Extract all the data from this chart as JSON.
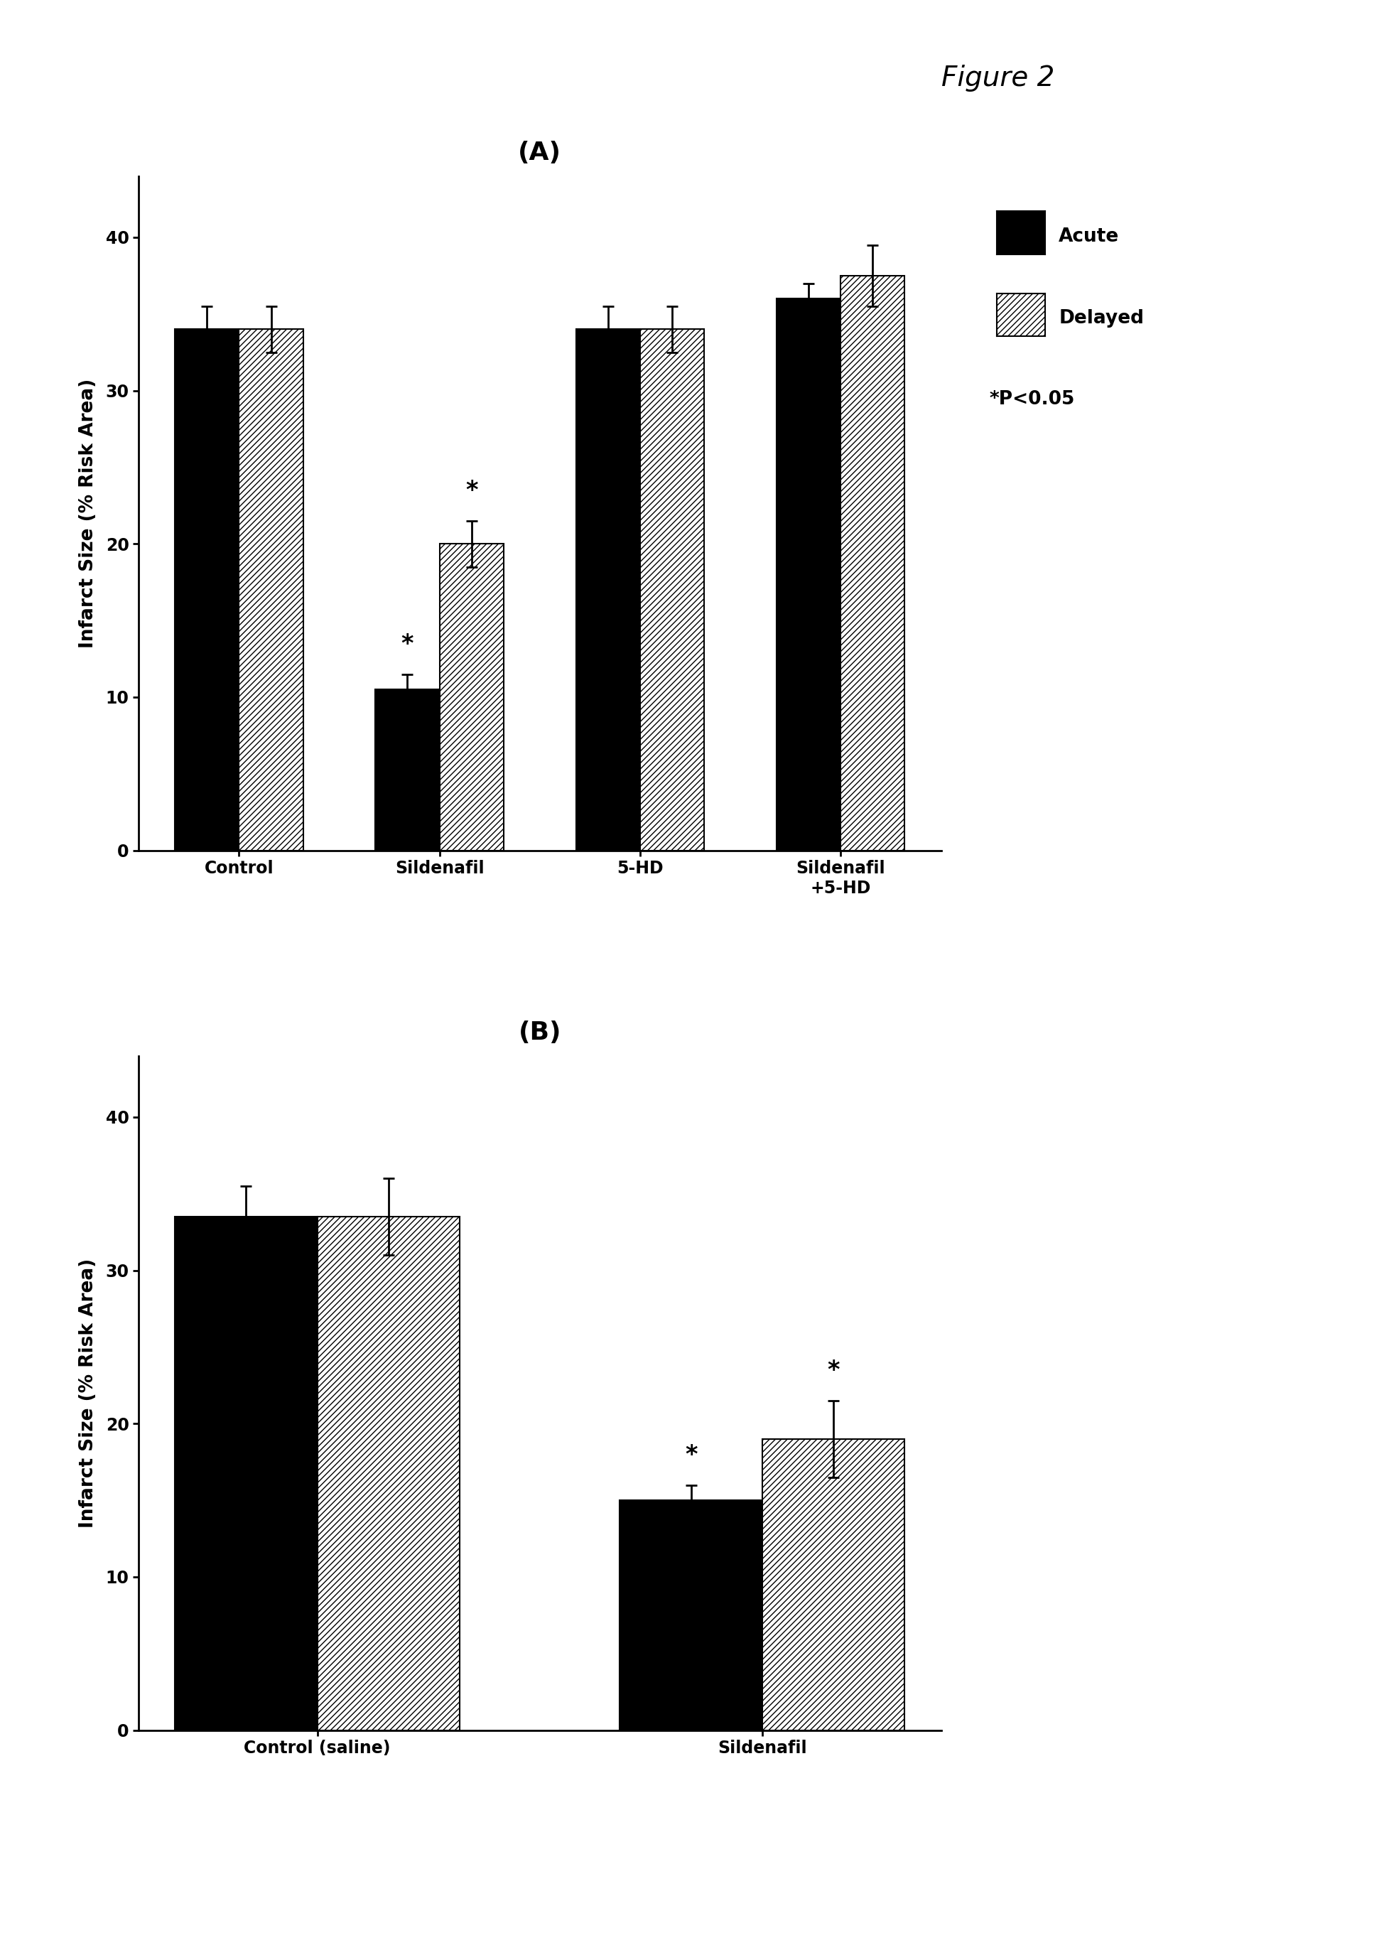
{
  "panel_A": {
    "title": "(A)",
    "categories": [
      "Control",
      "Sildenafil",
      "5-HD",
      "Sildenafil\n+5-HD"
    ],
    "acute_values": [
      34.0,
      10.5,
      34.0,
      36.0
    ],
    "delayed_values": [
      34.0,
      20.0,
      34.0,
      37.5
    ],
    "acute_errors": [
      1.5,
      1.0,
      1.5,
      1.0
    ],
    "delayed_errors": [
      1.5,
      1.5,
      1.5,
      2.0
    ],
    "acute_asterisk": [
      false,
      true,
      false,
      false
    ],
    "delayed_asterisk": [
      false,
      true,
      false,
      false
    ],
    "ylabel": "Infarct Size (% Risk Area)",
    "ylim": [
      0,
      44
    ],
    "yticks": [
      0,
      10,
      20,
      30,
      40
    ]
  },
  "panel_B": {
    "title": "(B)",
    "categories": [
      "Control (saline)",
      "Sildenafil"
    ],
    "acute_values": [
      33.5,
      15.0
    ],
    "delayed_values": [
      33.5,
      19.0
    ],
    "acute_errors": [
      2.0,
      1.0
    ],
    "delayed_errors": [
      2.5,
      2.5
    ],
    "acute_asterisk": [
      false,
      true
    ],
    "delayed_asterisk": [
      false,
      true
    ],
    "ylabel": "Infarct Size (% Risk Area)",
    "ylim": [
      0,
      44
    ],
    "yticks": [
      0,
      10,
      20,
      30,
      40
    ]
  },
  "legend_labels": [
    "Acute",
    "Delayed"
  ],
  "acute_color": "#000000",
  "delayed_color": "#ffffff",
  "delayed_hatch": "////",
  "bar_width": 0.32,
  "figure2_text": "Figure 2",
  "pvalue_text": "*P<0.05",
  "background_color": "#ffffff",
  "fontsize_title": 26,
  "fontsize_axis_label": 19,
  "fontsize_tick": 17,
  "fontsize_legend": 19,
  "fontsize_asterisk": 24,
  "fontsize_pvalue": 19
}
